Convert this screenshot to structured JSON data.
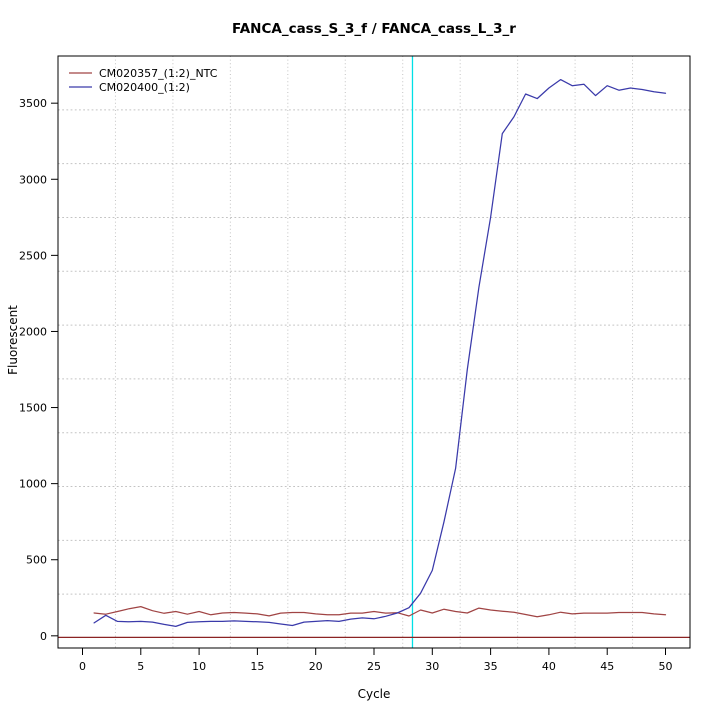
{
  "chart_data": {
    "type": "line",
    "title": "FANCA_cass_S_3_f / FANCA_cass_L_3_r",
    "xlabel": "Cycle",
    "ylabel": "Fluorescent",
    "x_ticks": [
      0,
      5,
      10,
      15,
      20,
      25,
      30,
      35,
      40,
      45,
      50
    ],
    "y_ticks": [
      0,
      500,
      1000,
      1500,
      2000,
      2500,
      3000,
      3500
    ],
    "xlim": [
      -2.1,
      52.1
    ],
    "ylim": [
      -80,
      3810
    ],
    "grid": {
      "on": true,
      "divisions_x": 11,
      "divisions_y": 11,
      "color": "#c3c3c3",
      "style": "dotted"
    },
    "frame_color": "#000000",
    "threshold_cycle_line": {
      "x": 28.3,
      "color": "#00e0e6"
    },
    "baseline_hline": {
      "y": -10,
      "color": "#8b2323"
    },
    "legend": {
      "position": "top-left"
    },
    "x": [
      1,
      2,
      3,
      4,
      5,
      6,
      7,
      8,
      9,
      10,
      11,
      12,
      13,
      14,
      15,
      16,
      17,
      18,
      19,
      20,
      21,
      22,
      23,
      24,
      25,
      26,
      27,
      28,
      29,
      30,
      31,
      32,
      33,
      34,
      35,
      36,
      37,
      38,
      39,
      40,
      41,
      42,
      43,
      44,
      45,
      46,
      47,
      48,
      49,
      50
    ],
    "series": [
      {
        "name": "CM020357_(1:2)_NTC",
        "color": "#a04444",
        "values": [
          150,
          142,
          160,
          178,
          192,
          165,
          148,
          160,
          142,
          160,
          138,
          150,
          153,
          149,
          144,
          131,
          149,
          153,
          153,
          144,
          138,
          138,
          149,
          149,
          160,
          149,
          152,
          130,
          170,
          150,
          175,
          160,
          150,
          182,
          170,
          162,
          155,
          140,
          125,
          138,
          155,
          144,
          149,
          149,
          149,
          153,
          153,
          153,
          144,
          138
        ]
      },
      {
        "name": "CM020400_(1:2)",
        "color": "#3a3aaa",
        "values": [
          85,
          135,
          95,
          92,
          95,
          90,
          75,
          62,
          88,
          92,
          95,
          95,
          98,
          95,
          92,
          88,
          78,
          68,
          90,
          95,
          100,
          95,
          110,
          118,
          112,
          128,
          150,
          185,
          280,
          430,
          750,
          1100,
          1750,
          2290,
          2750,
          3300,
          3410,
          3560,
          3530,
          3600,
          3655,
          3615,
          3625,
          3550,
          3615,
          3585,
          3600,
          3590,
          3575,
          3565
        ]
      }
    ]
  }
}
